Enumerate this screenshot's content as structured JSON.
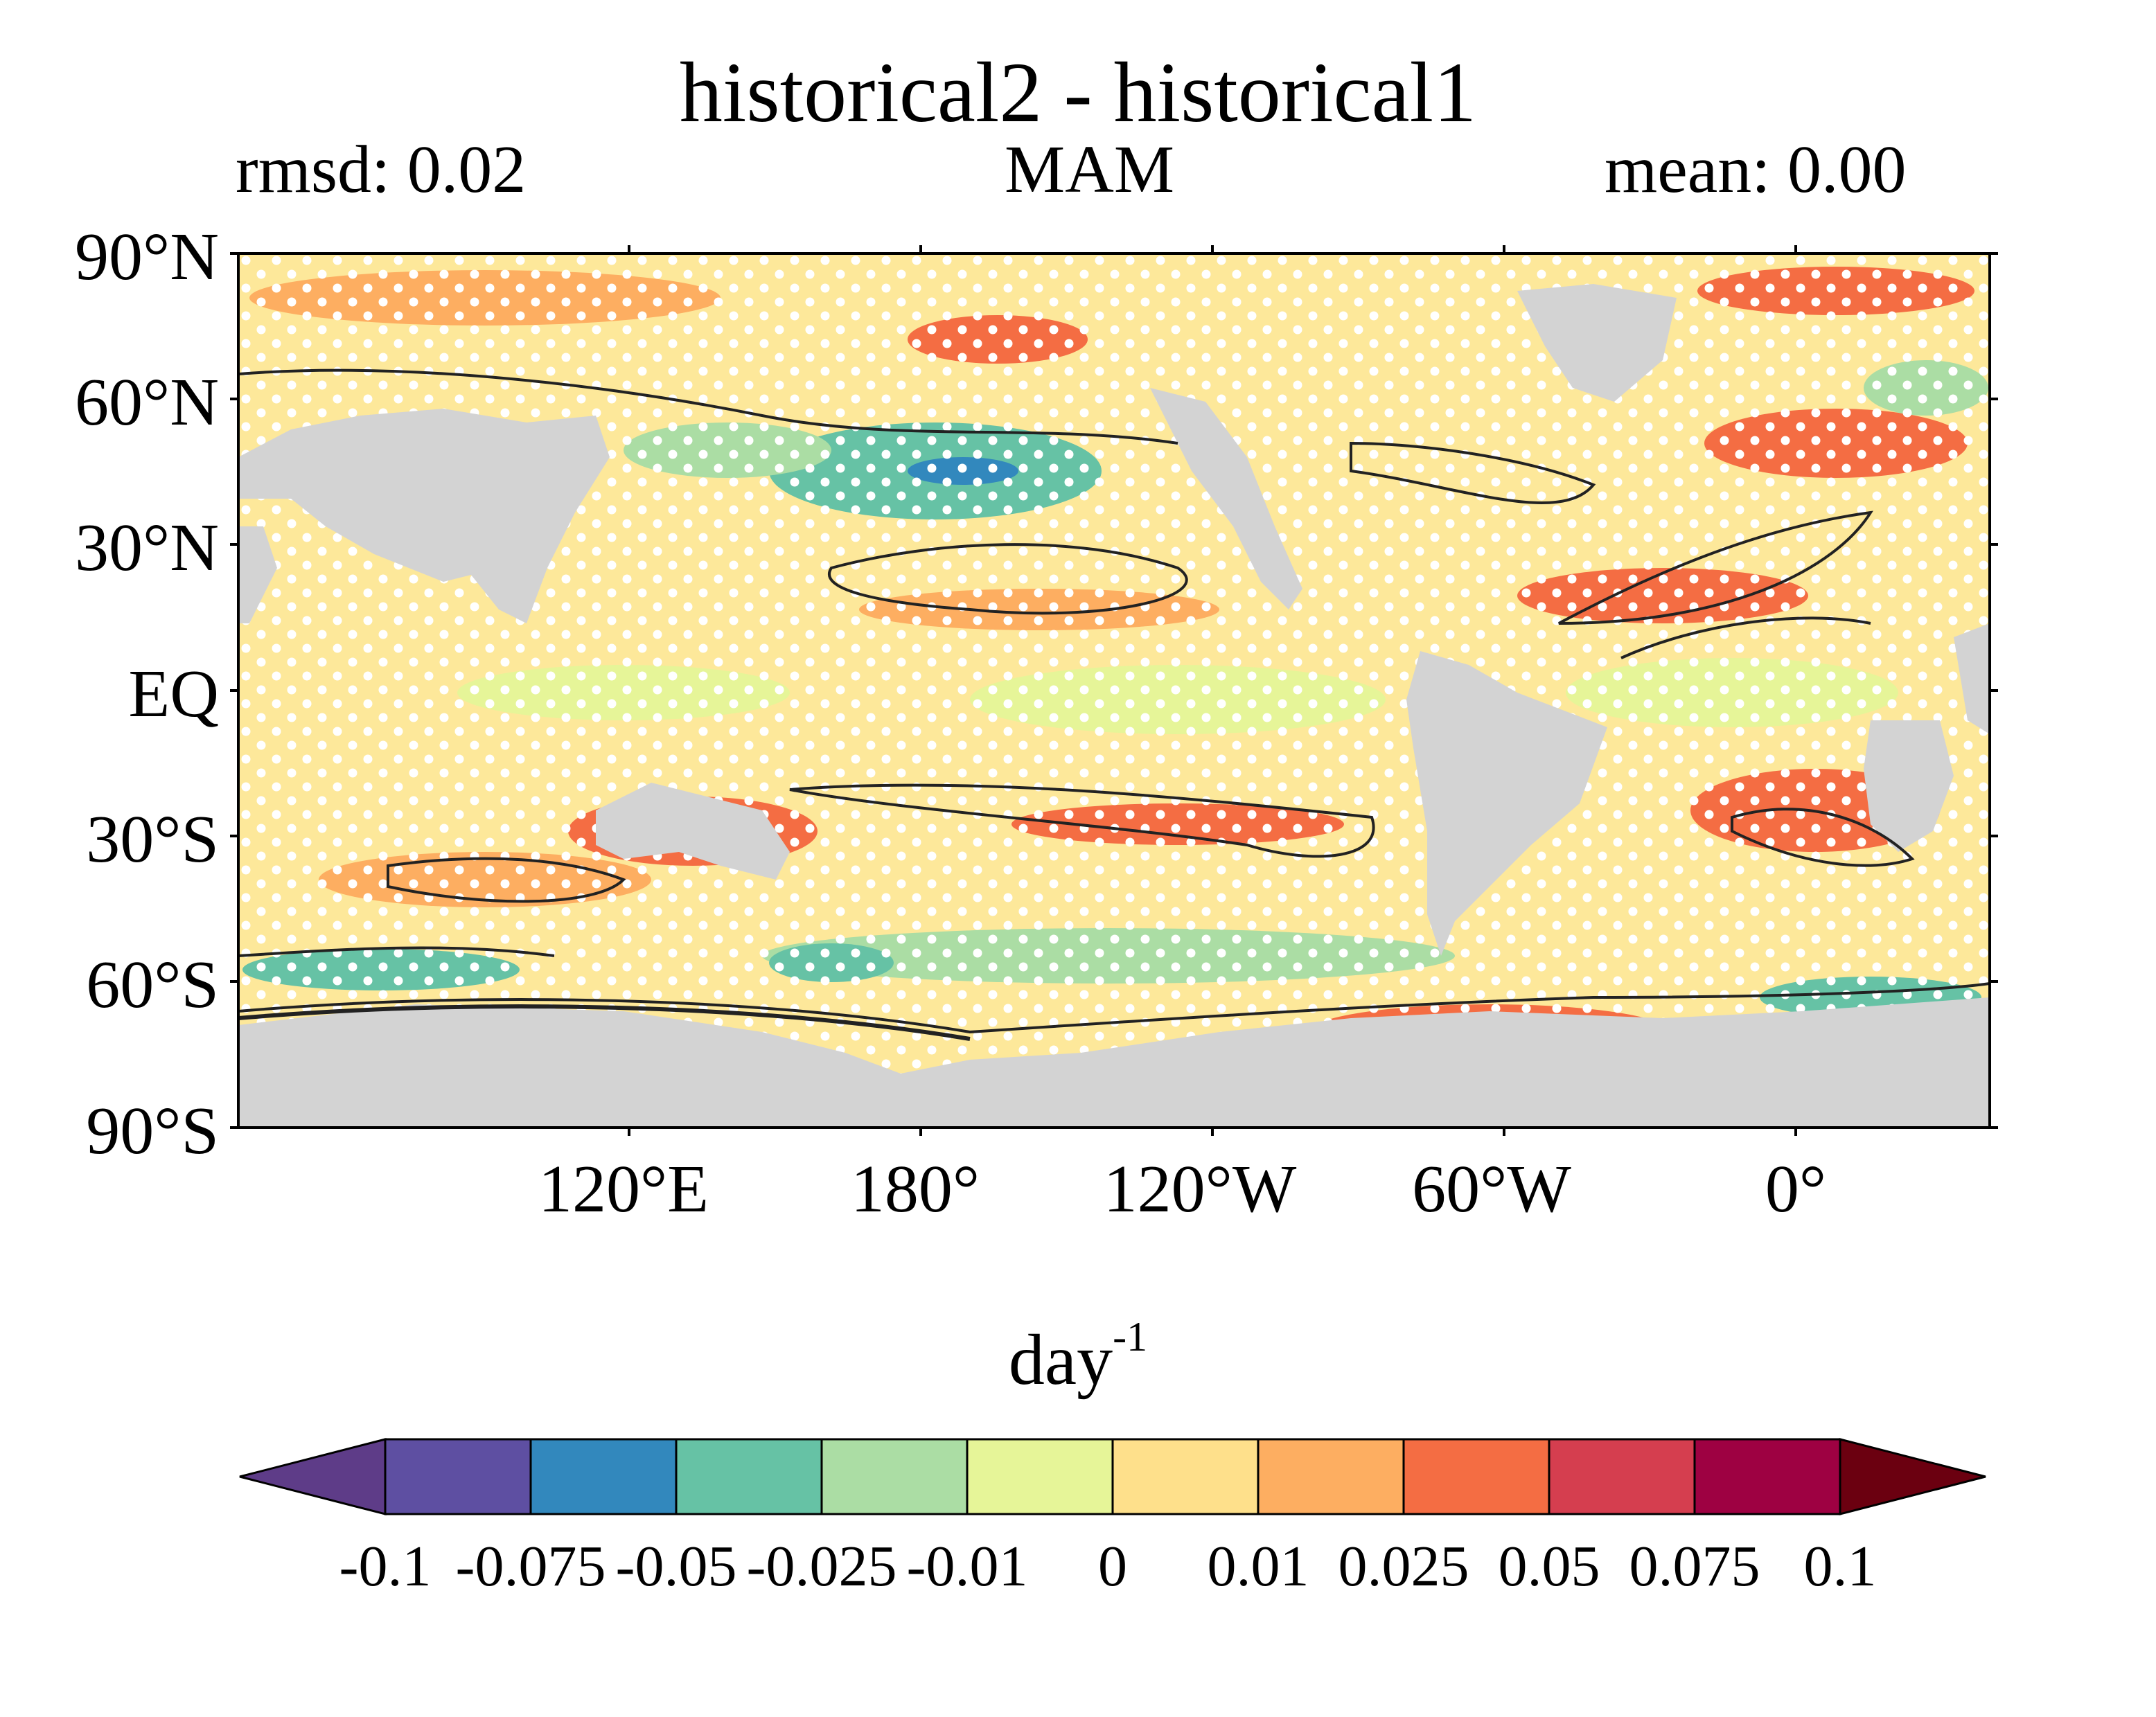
{
  "figure": {
    "title": "historical2 - historical1",
    "rmsd_label": "rmsd: 0.02",
    "season_label": "MAM",
    "mean_label": "mean: 0.00"
  },
  "axes": {
    "lat_ticks": [
      "90°N",
      "60°N",
      "30°N",
      "EQ",
      "30°S",
      "60°S",
      "90°S"
    ],
    "lon_ticks": [
      "120°E",
      "180°",
      "120°W",
      "60°W",
      "0°"
    ]
  },
  "colorbar": {
    "units": "day",
    "units_exp": "-1",
    "tick_labels": [
      "-0.1",
      "-0.075",
      "-0.05",
      "-0.025",
      "-0.01",
      "0",
      "0.01",
      "0.025",
      "0.05",
      "0.075",
      "0.1"
    ],
    "colors": [
      "#5e4fa2",
      "#3288bd",
      "#66c2a5",
      "#abdda4",
      "#e6f598",
      "#fee08b",
      "#fdae61",
      "#f46d43",
      "#d53e4f",
      "#9e0142"
    ],
    "extend_low_color": "#5e3c88",
    "extend_high_color": "#6b0010"
  },
  "land_color": "#d3d3d3",
  "stipple_color": "#ffffff"
}
